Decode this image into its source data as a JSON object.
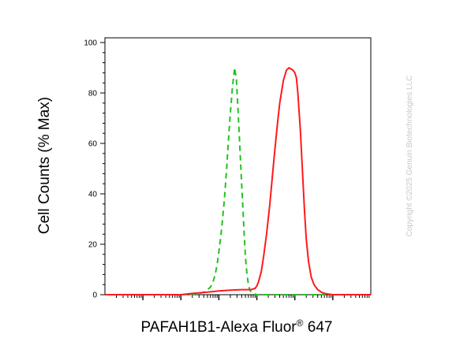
{
  "chart_data": {
    "type": "line",
    "title": "",
    "xlabel": "PAFAH1B1-Alexa Fluor",
    "xlabel_superscript": "®",
    "xlabel_suffix": " 647",
    "ylabel": "Cell Counts (% Max)",
    "xscale": "log",
    "xlim": [
      0.1,
      1000000
    ],
    "ylim": [
      0,
      100
    ],
    "y_ticks": [
      0,
      20,
      40,
      60,
      80,
      100
    ],
    "grid": false,
    "legend": "none",
    "series": [
      {
        "color": "#22c322",
        "style": "dashed",
        "x": [
          0.1,
          10,
          20,
          30,
          40,
          50,
          60,
          70,
          80,
          90,
          100,
          120,
          140,
          160,
          180,
          200,
          230,
          260,
          290,
          320,
          350,
          380,
          420,
          460,
          500,
          550,
          600,
          650,
          700,
          800,
          900,
          1000,
          1200,
          1500,
          2000,
          5000,
          10000,
          100000,
          1000000
        ],
        "y": [
          0,
          0,
          0.2,
          0.5,
          1,
          2,
          3,
          5,
          8,
          12,
          17,
          27,
          38,
          50,
          62,
          72,
          83,
          90,
          85,
          73,
          61,
          50,
          37,
          25,
          15,
          8,
          4,
          2,
          1,
          0.4,
          0.2,
          0,
          0,
          0,
          0,
          0,
          0,
          0,
          0
        ]
      },
      {
        "color": "#ff1a1a",
        "style": "solid",
        "x": [
          0.1,
          1,
          3,
          5,
          10,
          20,
          50,
          100,
          200,
          400,
          700,
          900,
          1000,
          1100,
          1300,
          1500,
          1800,
          2200,
          2600,
          3000,
          3500,
          4000,
          5000,
          6000,
          7000,
          8000,
          9000,
          10000,
          11000,
          12000,
          14000,
          16000,
          18000,
          20000,
          23000,
          27000,
          32000,
          40000,
          50000,
          60000,
          80000,
          100000,
          200000,
          1000000
        ],
        "y": [
          0,
          0,
          0,
          0,
          0,
          0.5,
          1,
          1.5,
          1.8,
          2,
          2,
          2.5,
          3.5,
          5,
          9,
          15,
          24,
          36,
          48,
          58,
          68,
          76,
          85,
          89,
          90,
          89.5,
          89,
          88,
          86,
          80,
          65,
          48,
          33,
          22,
          13,
          7,
          4,
          2,
          1,
          0.5,
          0.2,
          0,
          0,
          0
        ]
      }
    ]
  },
  "watermark": "Copyright ©2025 Genuin Biotechnologies LLC"
}
